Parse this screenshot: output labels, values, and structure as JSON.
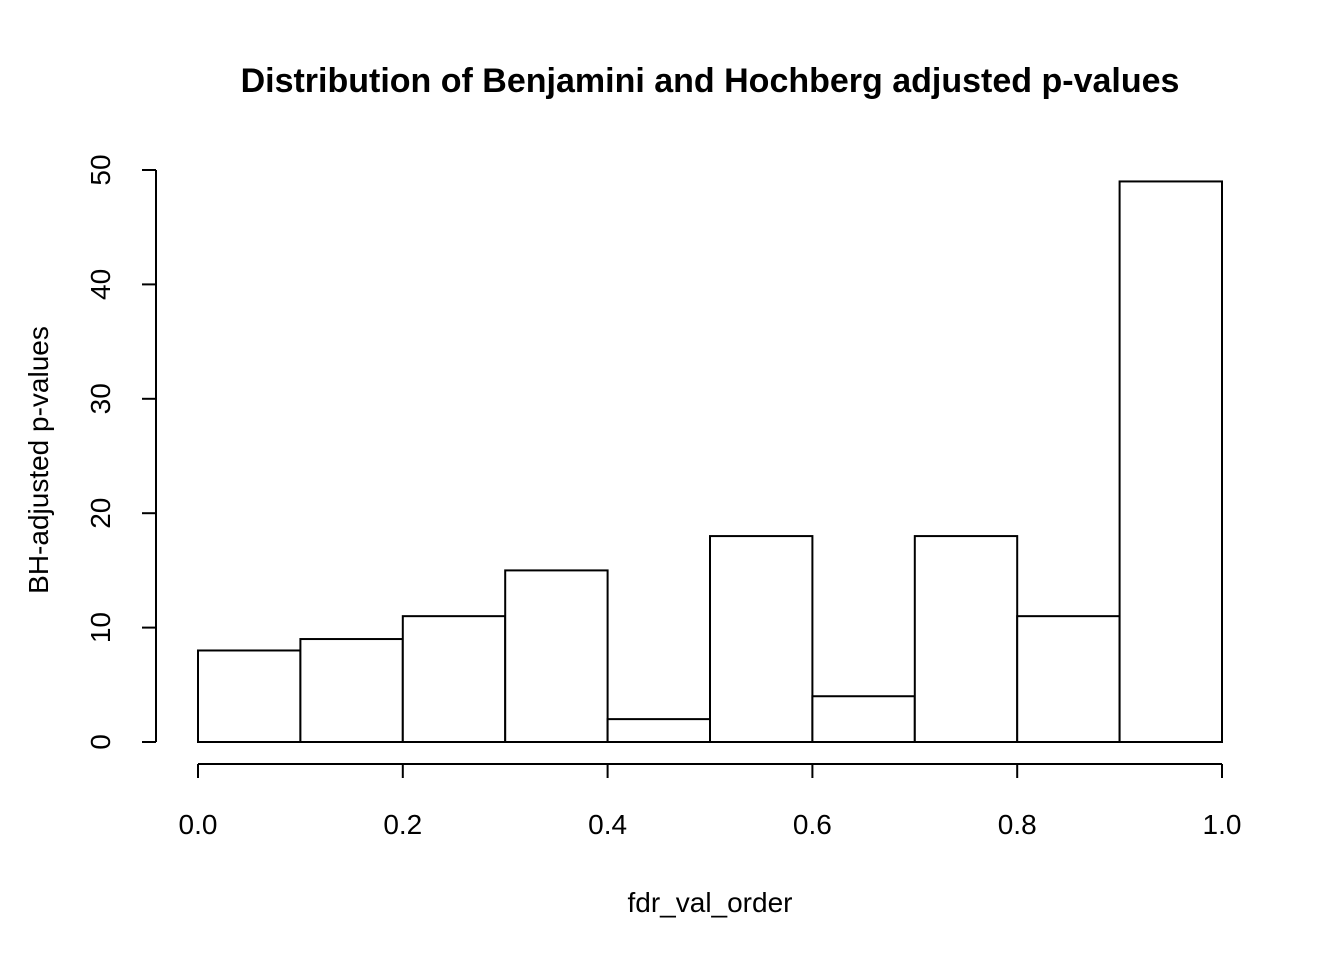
{
  "chart_data": {
    "type": "bar",
    "title": "Distribution of Benjamini and Hochberg adjusted p-values",
    "xlabel": "fdr_val_order",
    "ylabel": "BH-adjusted p-values",
    "bins": [
      {
        "x0": 0.0,
        "x1": 0.1,
        "count": 8
      },
      {
        "x0": 0.1,
        "x1": 0.2,
        "count": 9
      },
      {
        "x0": 0.2,
        "x1": 0.3,
        "count": 11
      },
      {
        "x0": 0.3,
        "x1": 0.4,
        "count": 15
      },
      {
        "x0": 0.4,
        "x1": 0.5,
        "count": 2
      },
      {
        "x0": 0.5,
        "x1": 0.6,
        "count": 18
      },
      {
        "x0": 0.6,
        "x1": 0.7,
        "count": 4
      },
      {
        "x0": 0.7,
        "x1": 0.8,
        "count": 18
      },
      {
        "x0": 0.8,
        "x1": 0.9,
        "count": 11
      },
      {
        "x0": 0.9,
        "x1": 1.0,
        "count": 49
      }
    ],
    "xlim": [
      0.0,
      1.0
    ],
    "ylim": [
      0,
      50
    ],
    "x_ticks": [
      "0.0",
      "0.2",
      "0.4",
      "0.6",
      "0.8",
      "1.0"
    ],
    "y_ticks": [
      "0",
      "10",
      "20",
      "30",
      "40",
      "50"
    ],
    "grid": false,
    "legend": "none"
  }
}
